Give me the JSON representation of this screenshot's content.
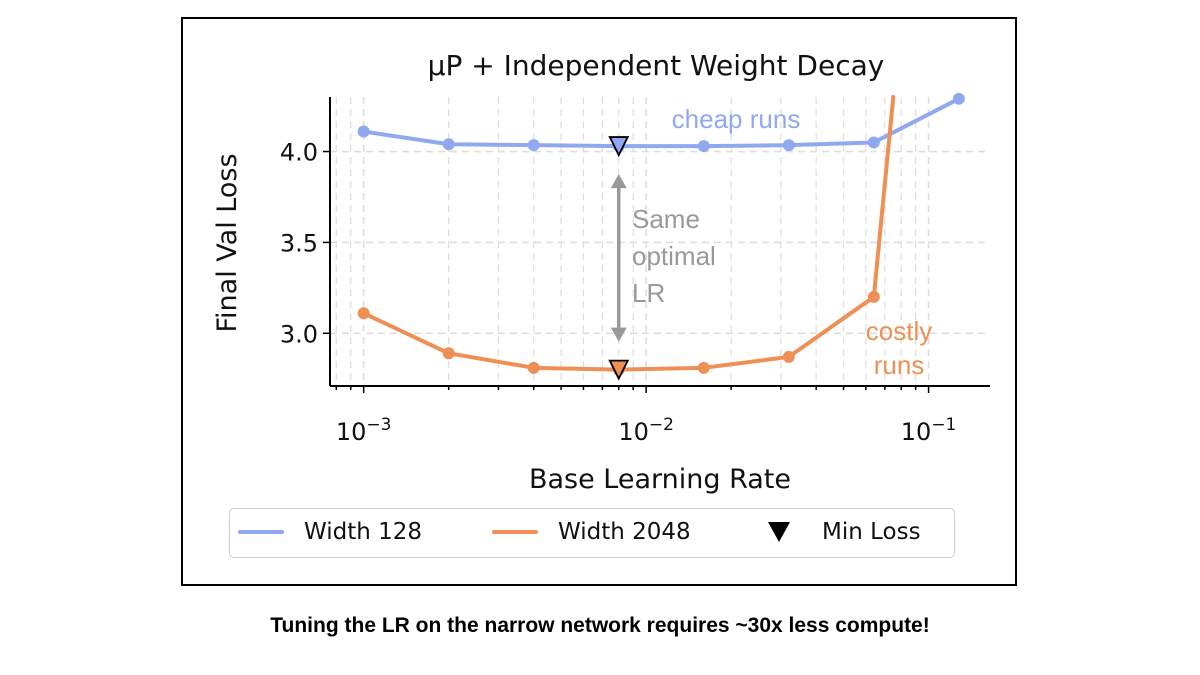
{
  "chart_data": {
    "type": "line",
    "title": "μP + Independent Weight Decay",
    "xlabel": "Base Learning Rate",
    "ylabel": "Final Val Loss",
    "xscale": "log",
    "xlim": [
      0.00076,
      0.165
    ],
    "ylim": [
      2.71,
      4.3
    ],
    "xticks": [
      {
        "value": 0.001,
        "base": "10",
        "exp": "−3"
      },
      {
        "value": 0.01,
        "base": "10",
        "exp": "−2"
      },
      {
        "value": 0.1,
        "base": "10",
        "exp": "−1"
      }
    ],
    "yticks": [
      {
        "value": 3.0,
        "label": "3.0"
      },
      {
        "value": 3.5,
        "label": "3.5"
      },
      {
        "value": 4.0,
        "label": "4.0"
      }
    ],
    "grid": true,
    "series": [
      {
        "name": "Width 128",
        "color": "#8fa8f0",
        "x": [
          0.001,
          0.002,
          0.004,
          0.008,
          0.016,
          0.032,
          0.064,
          0.128
        ],
        "y": [
          4.11,
          4.04,
          4.035,
          4.03,
          4.03,
          4.035,
          4.05,
          4.29
        ],
        "min": {
          "x": 0.008,
          "y": 4.03
        }
      },
      {
        "name": "Width 2048",
        "color": "#ee9055",
        "x": [
          0.001,
          0.002,
          0.004,
          0.008,
          0.016,
          0.032,
          0.064
        ],
        "y": [
          3.11,
          2.89,
          2.81,
          2.8,
          2.81,
          2.87,
          3.2
        ],
        "min": {
          "x": 0.008,
          "y": 2.8
        },
        "extends_to": {
          "x": 0.075,
          "y": 4.3
        }
      }
    ],
    "legend": {
      "position": "bottom",
      "items": [
        {
          "label": "Width 128",
          "kind": "line",
          "color": "#8fa8f0"
        },
        {
          "label": "Width 2048",
          "kind": "line",
          "color": "#ee9055"
        },
        {
          "label": "Min Loss",
          "kind": "marker",
          "color": "#000000"
        }
      ]
    },
    "annotations": {
      "cheap": {
        "text": "cheap runs",
        "color": "#8fa8f0"
      },
      "costly": {
        "lines": [
          "costly",
          "runs"
        ],
        "color": "#ee9055"
      },
      "same": {
        "lines": [
          "Same",
          "optimal",
          "LR"
        ],
        "color": "#999999"
      }
    }
  },
  "caption": "Tuning the LR on the narrow network requires ~30x less compute!"
}
